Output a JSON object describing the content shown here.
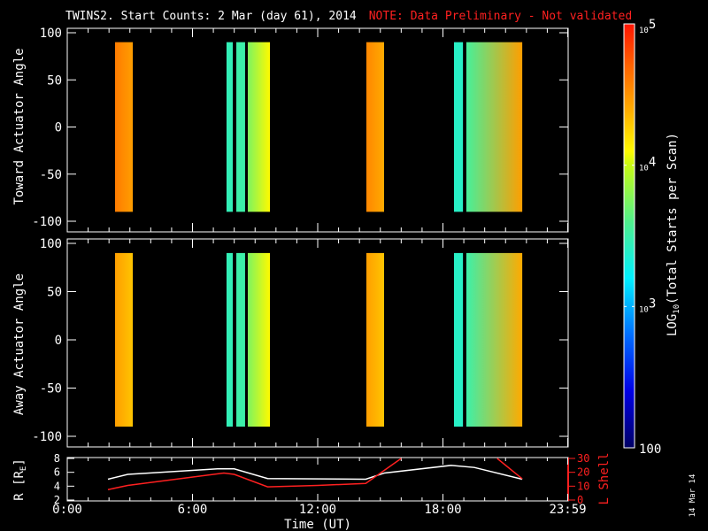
{
  "title": {
    "main": "TWINS2. Start Counts:  2 Mar (day  61), 2014",
    "note": "NOTE: Data Preliminary - Not validated",
    "note_color": "#ff2020"
  },
  "footer_date": "14 Mar 14",
  "chart_data": [
    {
      "type": "heatmap",
      "name": "toward",
      "ylabel": "Toward Actuator Angle",
      "ylim": [
        -100,
        100
      ],
      "yticks": [
        "100",
        "50",
        "0",
        "-50",
        "-100"
      ],
      "xlim_hours": [
        0,
        24
      ],
      "angle_range": [
        -90,
        90
      ],
      "blocks": [
        {
          "t0": 2.29,
          "t1": 3.14,
          "log_left": 4.6,
          "log_right": 4.45
        },
        {
          "t0": 7.63,
          "t1": 7.93,
          "log_left": 3.45,
          "log_right": 3.45
        },
        {
          "t0": 8.1,
          "t1": 8.52,
          "log_left": 3.5,
          "log_right": 3.5
        },
        {
          "t0": 8.65,
          "t1": 9.71,
          "log_left": 3.75,
          "log_right": 4.1
        },
        {
          "t0": 14.33,
          "t1": 15.18,
          "log_left": 4.55,
          "log_right": 4.4
        },
        {
          "t0": 18.53,
          "t1": 18.96,
          "log_left": 3.4,
          "log_right": 3.4
        },
        {
          "t0": 19.12,
          "t1": 21.8,
          "log_left": 3.55,
          "log_right": 4.45
        }
      ]
    },
    {
      "type": "heatmap",
      "name": "away",
      "ylabel": "Away Actuator Angle",
      "ylim": [
        -100,
        100
      ],
      "yticks": [
        "100",
        "50",
        "0",
        "-50",
        "-100"
      ],
      "xlim_hours": [
        0,
        24
      ],
      "angle_range": [
        -90,
        90
      ],
      "blocks": [
        {
          "t0": 2.29,
          "t1": 3.14,
          "log_left": 4.45,
          "log_right": 4.3
        },
        {
          "t0": 7.63,
          "t1": 7.93,
          "log_left": 3.45,
          "log_right": 3.45
        },
        {
          "t0": 8.1,
          "t1": 8.52,
          "log_left": 3.5,
          "log_right": 3.5
        },
        {
          "t0": 8.65,
          "t1": 9.71,
          "log_left": 3.75,
          "log_right": 4.1
        },
        {
          "t0": 14.33,
          "t1": 15.18,
          "log_left": 4.45,
          "log_right": 4.3
        },
        {
          "t0": 18.53,
          "t1": 18.96,
          "log_left": 3.4,
          "log_right": 3.4
        },
        {
          "t0": 19.12,
          "t1": 21.8,
          "log_left": 3.5,
          "log_right": 4.4
        }
      ]
    },
    {
      "type": "line",
      "name": "orbit",
      "ylabel": "R [R",
      "ylabel_sub": "E",
      "ylabel_end": "]",
      "ylim": [
        2,
        8
      ],
      "yticks": [
        "2",
        "4",
        "6",
        "8"
      ],
      "y2label": "L Shell",
      "y2lim": [
        0,
        30
      ],
      "y2ticks": [
        "0",
        "10",
        "20",
        "30"
      ],
      "xlabel": "Time (UT)",
      "xticks": [
        "0:00",
        "6:00",
        "12:00",
        "18:00",
        "23:59"
      ],
      "series": [
        {
          "name": "R",
          "color": "#ffffff",
          "x": [
            1.95,
            2.9,
            7.2,
            8.0,
            9.6,
            14.3,
            15.2,
            18.4,
            19.5,
            21.8
          ],
          "y": [
            5.0,
            5.7,
            6.5,
            6.5,
            5.1,
            5.0,
            5.9,
            7.0,
            6.7,
            5.0
          ]
        },
        {
          "name": "L Shell",
          "color": "#ff2020",
          "x": [
            1.95,
            2.9,
            7.5,
            8.0,
            9.6,
            12.0,
            14.3,
            16.0
          ],
          "y": [
            7.5,
            10.5,
            19.5,
            18.5,
            9.5,
            10.5,
            12.0,
            30.0
          ]
        },
        {
          "name": "L Shell (seg 2)",
          "color": "#ff2020",
          "x": [
            20.6,
            21.8
          ],
          "y": [
            30.0,
            15.3
          ]
        }
      ]
    },
    {
      "type": "colorbar",
      "label": "LOG",
      "label_sub": "10",
      "label_end": "(Total Starts per Scan)",
      "range_log": [
        2,
        5
      ],
      "ticks": [
        {
          "base": "10",
          "exp": "5",
          "log": 5
        },
        {
          "base": "10",
          "exp": "4",
          "log": 4
        },
        {
          "base": "10",
          "exp": "3",
          "log": 3
        },
        {
          "base": "100",
          "exp": "",
          "log": 2
        }
      ]
    }
  ]
}
